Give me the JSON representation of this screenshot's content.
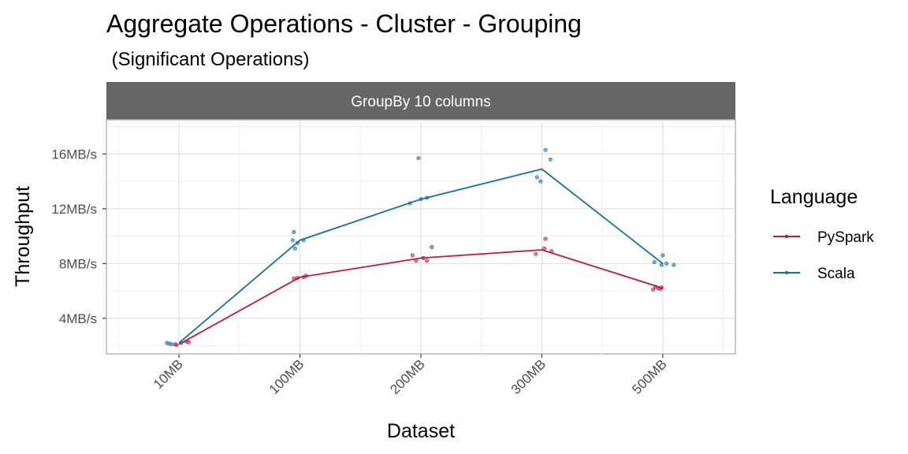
{
  "chart_data": {
    "type": "line",
    "title": "Aggregate Operations - Cluster - Grouping",
    "subtitle": " (Significant Operations)",
    "facet_label": "GroupBy 10 columns",
    "xlabel": "Dataset",
    "ylabel": "Throughput",
    "categories": [
      "10MB",
      "100MB",
      "200MB",
      "300MB",
      "500MB"
    ],
    "y_ticks": [
      4,
      8,
      12,
      16
    ],
    "y_tick_labels": [
      "4MB/s",
      "8MB/s",
      "12MB/s",
      "16MB/s"
    ],
    "ylim": [
      1.4,
      18.5
    ],
    "grid": true,
    "legend": {
      "title": "Language",
      "position": "right"
    },
    "series": [
      {
        "name": "PySpark",
        "color": "#c1173c",
        "values": [
          2.1,
          7.0,
          8.4,
          9.0,
          6.2
        ],
        "points": [
          {
            "x": "10MB",
            "dx": -0.03,
            "y": 2.1
          },
          {
            "x": "10MB",
            "dx": -0.02,
            "y": 2.05
          },
          {
            "x": "10MB",
            "dx": 0.06,
            "y": 2.3
          },
          {
            "x": "10MB",
            "dx": 0.08,
            "y": 2.25
          },
          {
            "x": "100MB",
            "dx": -0.05,
            "y": 6.9
          },
          {
            "x": "100MB",
            "dx": -0.02,
            "y": 6.95
          },
          {
            "x": "100MB",
            "dx": 0.03,
            "y": 7.0
          },
          {
            "x": "100MB",
            "dx": 0.05,
            "y": 7.1
          },
          {
            "x": "200MB",
            "dx": -0.07,
            "y": 8.6
          },
          {
            "x": "200MB",
            "dx": -0.04,
            "y": 8.2
          },
          {
            "x": "200MB",
            "dx": 0.02,
            "y": 8.4
          },
          {
            "x": "200MB",
            "dx": 0.05,
            "y": 8.2
          },
          {
            "x": "200MB",
            "dx": 0.09,
            "y": 9.2
          },
          {
            "x": "300MB",
            "dx": -0.05,
            "y": 8.7
          },
          {
            "x": "300MB",
            "dx": 0.02,
            "y": 9.1
          },
          {
            "x": "300MB",
            "dx": 0.03,
            "y": 9.8
          },
          {
            "x": "300MB",
            "dx": 0.08,
            "y": 8.9
          },
          {
            "x": "500MB",
            "dx": -0.08,
            "y": 6.1
          },
          {
            "x": "500MB",
            "dx": -0.06,
            "y": 6.3
          },
          {
            "x": "500MB",
            "dx": -0.04,
            "y": 6.2
          },
          {
            "x": "500MB",
            "dx": -0.02,
            "y": 6.15
          },
          {
            "x": "500MB",
            "dx": -0.01,
            "y": 6.25
          }
        ]
      },
      {
        "name": "Scala",
        "color": "#1670a7",
        "values": [
          2.2,
          9.7,
          12.7,
          14.9,
          8.0
        ],
        "points": [
          {
            "x": "10MB",
            "dx": -0.1,
            "y": 2.2
          },
          {
            "x": "10MB",
            "dx": -0.08,
            "y": 2.15
          },
          {
            "x": "10MB",
            "dx": -0.06,
            "y": 2.1
          },
          {
            "x": "10MB",
            "dx": 0.02,
            "y": 2.2
          },
          {
            "x": "100MB",
            "dx": -0.06,
            "y": 9.7
          },
          {
            "x": "100MB",
            "dx": -0.05,
            "y": 10.3
          },
          {
            "x": "100MB",
            "dx": -0.04,
            "y": 9.1
          },
          {
            "x": "100MB",
            "dx": -0.02,
            "y": 9.5
          },
          {
            "x": "100MB",
            "dx": 0.03,
            "y": 9.7
          },
          {
            "x": "200MB",
            "dx": -0.09,
            "y": 12.4
          },
          {
            "x": "200MB",
            "dx": -0.02,
            "y": 15.7
          },
          {
            "x": "200MB",
            "dx": 0.0,
            "y": 12.7
          },
          {
            "x": "200MB",
            "dx": 0.05,
            "y": 12.8
          },
          {
            "x": "300MB",
            "dx": -0.04,
            "y": 14.3
          },
          {
            "x": "300MB",
            "dx": -0.01,
            "y": 14.0
          },
          {
            "x": "300MB",
            "dx": 0.03,
            "y": 16.3
          },
          {
            "x": "300MB",
            "dx": 0.07,
            "y": 15.6
          },
          {
            "x": "500MB",
            "dx": -0.07,
            "y": 8.1
          },
          {
            "x": "500MB",
            "dx": -0.01,
            "y": 7.9
          },
          {
            "x": "500MB",
            "dx": 0.0,
            "y": 8.6
          },
          {
            "x": "500MB",
            "dx": 0.03,
            "y": 8.0
          },
          {
            "x": "500MB",
            "dx": 0.09,
            "y": 7.9
          }
        ]
      }
    ]
  }
}
